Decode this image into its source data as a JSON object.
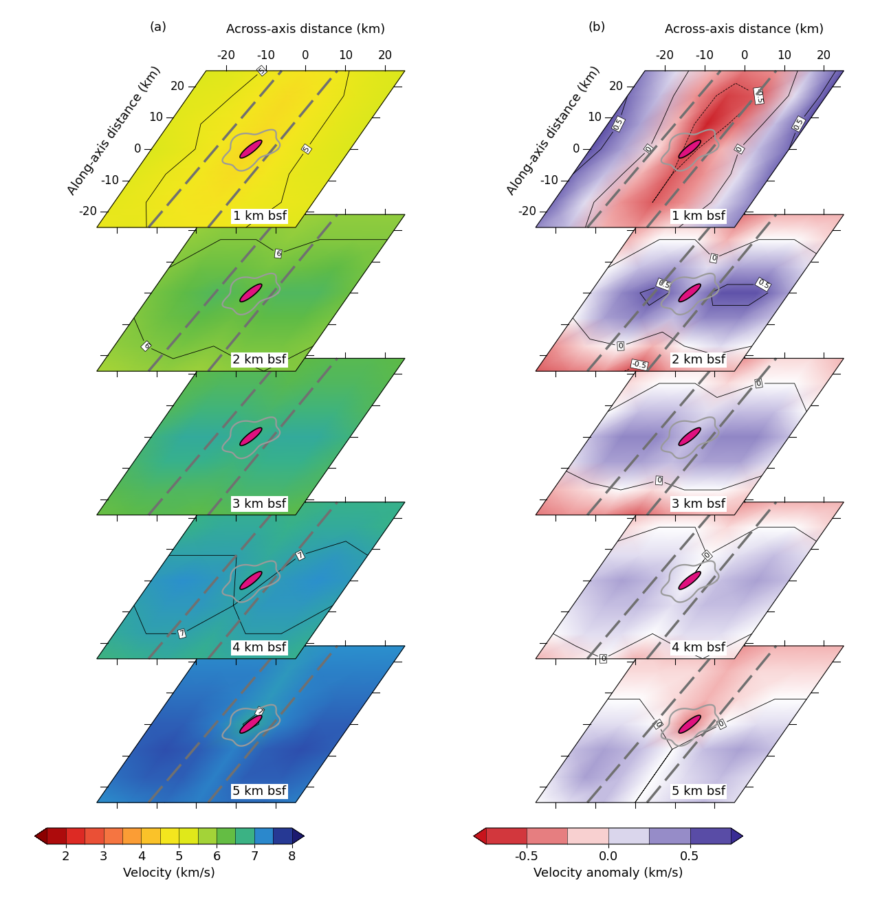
{
  "chart_data": [
    {
      "type": "heatmap",
      "title": "(a)",
      "xlabel": "Across-axis distance (km)",
      "ylabel": "Along-axis distance (km)",
      "xlim": [
        -25,
        25
      ],
      "ylim": [
        -25,
        25
      ],
      "xticks": [
        -20,
        -10,
        0,
        10,
        20
      ],
      "yticks": [
        -20,
        -10,
        0,
        10,
        20
      ],
      "x": [
        -25,
        -17,
        -8,
        0,
        8,
        17,
        25
      ],
      "y": [
        -25,
        -17,
        -8,
        0,
        8,
        17,
        25
      ],
      "contour_levels": [
        5,
        6,
        7
      ],
      "colorbar": {
        "label": "Velocity (km/s)",
        "levels": [
          1.5,
          2,
          2.5,
          3,
          3.5,
          4,
          4.5,
          5,
          5.5,
          6,
          6.5,
          7,
          7.5,
          8
        ],
        "ticks": [
          2,
          3,
          4,
          5,
          6,
          7,
          8
        ]
      },
      "slices": [
        {
          "label": "1 km bsf",
          "values": [
            [
              5.0,
              5.1,
              4.9,
              4.8,
              4.9,
              5.1,
              5.2
            ],
            [
              5.1,
              5.0,
              4.8,
              4.7,
              4.9,
              5.0,
              5.1
            ],
            [
              5.2,
              5.0,
              4.8,
              4.6,
              4.8,
              5.1,
              5.2
            ],
            [
              5.3,
              5.1,
              4.8,
              4.5,
              4.8,
              5.1,
              5.3
            ],
            [
              5.2,
              5.0,
              4.8,
              4.6,
              4.8,
              5.1,
              5.3
            ],
            [
              5.2,
              5.1,
              4.8,
              4.6,
              4.8,
              5.1,
              5.3
            ],
            [
              5.3,
              5.2,
              4.9,
              4.7,
              4.9,
              5.2,
              5.3
            ]
          ]
        },
        {
          "label": "2 km bsf",
          "values": [
            [
              5.7,
              5.8,
              5.9,
              5.8,
              5.9,
              6.0,
              6.0
            ],
            [
              5.9,
              6.0,
              6.1,
              6.0,
              6.1,
              6.1,
              6.0
            ],
            [
              6.0,
              6.2,
              6.3,
              6.2,
              6.3,
              6.3,
              6.1
            ],
            [
              6.1,
              6.3,
              6.5,
              6.3,
              6.5,
              6.5,
              6.2
            ],
            [
              6.0,
              6.2,
              6.2,
              6.1,
              6.2,
              6.3,
              6.1
            ],
            [
              5.9,
              6.0,
              6.0,
              5.9,
              6.0,
              6.0,
              6.0
            ],
            [
              5.8,
              5.9,
              5.9,
              5.8,
              5.9,
              5.9,
              5.9
            ]
          ]
        },
        {
          "label": "3 km bsf",
          "values": [
            [
              6.2,
              6.3,
              6.4,
              6.3,
              6.4,
              6.4,
              6.3
            ],
            [
              6.4,
              6.5,
              6.5,
              6.5,
              6.6,
              6.6,
              6.5
            ],
            [
              6.6,
              6.8,
              6.8,
              6.7,
              6.8,
              6.8,
              6.6
            ],
            [
              6.7,
              6.9,
              6.9,
              6.8,
              6.9,
              6.9,
              6.7
            ],
            [
              6.5,
              6.7,
              6.7,
              6.6,
              6.7,
              6.7,
              6.5
            ],
            [
              6.4,
              6.5,
              6.5,
              6.4,
              6.5,
              6.5,
              6.4
            ],
            [
              6.3,
              6.4,
              6.4,
              6.3,
              6.4,
              6.4,
              6.3
            ]
          ]
        },
        {
          "label": "4 km bsf",
          "values": [
            [
              6.7,
              6.8,
              6.9,
              6.8,
              6.9,
              6.9,
              6.8
            ],
            [
              6.9,
              7.0,
              7.0,
              6.9,
              7.0,
              7.0,
              6.9
            ],
            [
              7.0,
              7.1,
              7.1,
              7.0,
              7.1,
              7.1,
              7.0
            ],
            [
              7.1,
              7.2,
              7.1,
              6.9,
              7.1,
              7.2,
              7.1
            ],
            [
              7.0,
              7.0,
              7.0,
              6.9,
              7.0,
              7.1,
              7.0
            ],
            [
              6.8,
              6.9,
              6.9,
              6.8,
              6.9,
              6.9,
              6.8
            ],
            [
              6.8,
              6.8,
              6.8,
              6.7,
              6.8,
              6.8,
              6.8
            ]
          ]
        },
        {
          "label": "5 km bsf",
          "values": [
            [
              7.2,
              7.3,
              7.4,
              7.3,
              7.4,
              7.4,
              7.3
            ],
            [
              7.4,
              7.5,
              7.5,
              7.3,
              7.5,
              7.5,
              7.4
            ],
            [
              7.5,
              7.6,
              7.5,
              7.3,
              7.5,
              7.6,
              7.5
            ],
            [
              7.5,
              7.5,
              7.3,
              6.9,
              7.3,
              7.5,
              7.5
            ],
            [
              7.4,
              7.4,
              7.3,
              7.1,
              7.3,
              7.4,
              7.4
            ],
            [
              7.3,
              7.3,
              7.3,
              7.1,
              7.3,
              7.3,
              7.3
            ],
            [
              7.2,
              7.2,
              7.2,
              7.1,
              7.2,
              7.2,
              7.2
            ]
          ]
        }
      ]
    },
    {
      "type": "heatmap",
      "title": "(b)",
      "xlabel": "Across-axis distance (km)",
      "ylabel": "Along-axis distance (km)",
      "xlim": [
        -25,
        25
      ],
      "ylim": [
        -25,
        25
      ],
      "xticks": [
        -20,
        -10,
        0,
        10,
        20
      ],
      "yticks": [
        -20,
        -10,
        0,
        10,
        20
      ],
      "x": [
        -25,
        -17,
        -8,
        0,
        8,
        17,
        25
      ],
      "y": [
        -25,
        -17,
        -8,
        0,
        8,
        17,
        25
      ],
      "contour_levels": [
        -0.5,
        0,
        0.5
      ],
      "colorbar": {
        "label": "Velocity anomaly (km/s)",
        "levels": [
          -0.75,
          -0.5,
          -0.25,
          0,
          0.25,
          0.5,
          0.75
        ],
        "ticks": [
          -0.5,
          {
            "value": 0,
            "label": "0.0"
          },
          0.5
        ]
      },
      "slices": [
        {
          "label": "1 km bsf",
          "values": [
            [
              0.4,
              0.2,
              -0.2,
              -0.3,
              -0.1,
              0.2,
              0.4
            ],
            [
              0.5,
              0.1,
              -0.3,
              -0.5,
              -0.3,
              0.1,
              0.4
            ],
            [
              0.5,
              0.2,
              -0.2,
              -0.5,
              -0.3,
              0.1,
              0.5
            ],
            [
              0.6,
              0.3,
              -0.1,
              -0.6,
              -0.2,
              0.2,
              0.5
            ],
            [
              0.6,
              0.3,
              -0.2,
              -0.7,
              -0.4,
              0.2,
              0.6
            ],
            [
              0.5,
              0.2,
              -0.3,
              -0.6,
              -0.5,
              0.1,
              0.6
            ],
            [
              0.4,
              0.1,
              -0.2,
              -0.4,
              -0.3,
              0.2,
              0.6
            ]
          ]
        },
        {
          "label": "2 km bsf",
          "values": [
            [
              -0.5,
              -0.4,
              -0.3,
              -0.6,
              -0.3,
              -0.2,
              -0.2
            ],
            [
              -0.3,
              -0.1,
              0.0,
              -0.2,
              0.0,
              0.1,
              0.0
            ],
            [
              0.0,
              0.3,
              0.4,
              0.2,
              0.4,
              0.4,
              0.2
            ],
            [
              0.1,
              0.4,
              0.6,
              0.3,
              0.6,
              0.6,
              0.3
            ],
            [
              0.0,
              0.2,
              0.3,
              0.1,
              0.3,
              0.3,
              0.1
            ],
            [
              -0.2,
              0.0,
              0.0,
              -0.2,
              0.0,
              0.0,
              -0.1
            ],
            [
              -0.3,
              -0.2,
              -0.2,
              -0.4,
              -0.2,
              -0.2,
              -0.2
            ]
          ]
        },
        {
          "label": "3 km bsf",
          "values": [
            [
              -0.4,
              -0.3,
              -0.3,
              -0.5,
              -0.3,
              -0.2,
              -0.2
            ],
            [
              -0.2,
              -0.1,
              0.0,
              -0.1,
              0.0,
              0.0,
              -0.1
            ],
            [
              0.1,
              0.3,
              0.3,
              0.2,
              0.3,
              0.3,
              0.1
            ],
            [
              0.2,
              0.4,
              0.4,
              0.2,
              0.4,
              0.4,
              0.2
            ],
            [
              0.0,
              0.2,
              0.2,
              0.1,
              0.2,
              0.2,
              0.0
            ],
            [
              -0.1,
              0.0,
              0.0,
              -0.1,
              0.0,
              0.0,
              -0.1
            ],
            [
              -0.2,
              -0.1,
              -0.1,
              -0.3,
              -0.1,
              -0.1,
              -0.2
            ]
          ]
        },
        {
          "label": "4 km bsf",
          "values": [
            [
              -0.2,
              -0.1,
              0.0,
              -0.2,
              -0.1,
              0.0,
              -0.1
            ],
            [
              0.0,
              0.1,
              0.1,
              0.0,
              0.1,
              0.1,
              0.0
            ],
            [
              0.1,
              0.2,
              0.2,
              0.1,
              0.2,
              0.2,
              0.1
            ],
            [
              0.2,
              0.3,
              0.2,
              0.0,
              0.2,
              0.3,
              0.2
            ],
            [
              0.1,
              0.1,
              0.1,
              0.0,
              0.1,
              0.2,
              0.1
            ],
            [
              -0.1,
              0.0,
              0.0,
              -0.1,
              0.0,
              0.0,
              -0.1
            ],
            [
              -0.2,
              -0.2,
              -0.2,
              -0.3,
              -0.2,
              -0.2,
              -0.2
            ]
          ]
        },
        {
          "label": "5 km bsf",
          "values": [
            [
              0.0,
              0.1,
              0.2,
              0.0,
              0.1,
              0.2,
              0.1
            ],
            [
              0.1,
              0.3,
              0.2,
              0.0,
              0.1,
              0.2,
              0.1
            ],
            [
              0.2,
              0.3,
              0.2,
              0.0,
              0.2,
              0.3,
              0.2
            ],
            [
              0.1,
              0.1,
              0.0,
              -0.4,
              0.0,
              0.1,
              0.1
            ],
            [
              0.0,
              0.0,
              -0.1,
              -0.2,
              -0.1,
              0.0,
              0.0
            ],
            [
              -0.1,
              -0.1,
              -0.1,
              -0.2,
              -0.1,
              -0.1,
              -0.1
            ],
            [
              -0.1,
              -0.2,
              -0.2,
              -0.3,
              -0.2,
              -0.2,
              -0.2
            ]
          ]
        }
      ]
    }
  ]
}
